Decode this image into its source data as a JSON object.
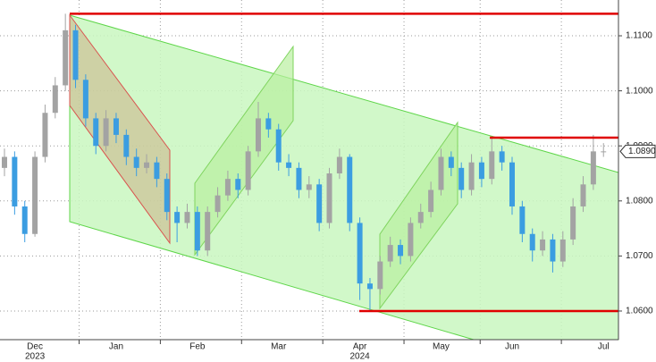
{
  "chart_data": {
    "type": "candlestick",
    "categories": [
      null,
      null,
      null,
      "Dec",
      null,
      null,
      null,
      null,
      null,
      null,
      null,
      "Jan",
      null,
      null,
      null,
      null,
      null,
      null,
      null,
      "Feb",
      null,
      null,
      null,
      null,
      null,
      null,
      null,
      "Mar",
      null,
      null,
      null,
      null,
      null,
      null,
      null,
      "Apr",
      null,
      null,
      null,
      null,
      null,
      null,
      null,
      "May",
      null,
      null,
      null,
      null,
      null,
      null,
      "Jun",
      null,
      null,
      null,
      null,
      null,
      null,
      null,
      null,
      "Jul"
    ],
    "years": [
      null,
      null,
      null,
      "2023",
      null,
      null,
      null,
      null,
      null,
      null,
      null,
      null,
      null,
      null,
      null,
      null,
      null,
      null,
      null,
      null,
      null,
      null,
      null,
      null,
      null,
      null,
      null,
      null,
      null,
      null,
      null,
      null,
      null,
      null,
      null,
      "2024",
      null,
      null,
      null,
      null,
      null,
      null,
      null,
      null,
      null,
      null,
      null,
      null,
      null,
      null,
      null,
      null,
      null,
      null,
      null,
      null,
      null,
      null,
      null,
      null
    ],
    "open": [
      1.086,
      1.088,
      1.079,
      1.074,
      1.088,
      1.096,
      1.101,
      1.111,
      1.102,
      1.095,
      1.09,
      1.095,
      1.092,
      1.088,
      1.086,
      1.087,
      1.084,
      1.078,
      1.076,
      1.078,
      1.071,
      1.078,
      1.081,
      1.084,
      1.082,
      1.089,
      1.095,
      1.093,
      1.087,
      1.086,
      1.082,
      1.083,
      1.076,
      1.085,
      1.088,
      1.076,
      1.065,
      1.064,
      1.069,
      1.072,
      1.07,
      1.076,
      1.078,
      1.082,
      1.088,
      1.086,
      1.082,
      1.087,
      1.084,
      1.089,
      1.087,
      1.079,
      1.074,
      1.071,
      1.073,
      1.069,
      1.073,
      1.079,
      1.083,
      1.089
    ],
    "high": [
      1.0895,
      1.089,
      1.08,
      1.089,
      1.0975,
      1.1025,
      1.114,
      1.112,
      1.103,
      1.096,
      1.0965,
      1.096,
      1.093,
      1.0895,
      1.0885,
      1.088,
      1.085,
      1.079,
      1.0795,
      1.079,
      1.079,
      1.0825,
      1.0855,
      1.085,
      1.09,
      1.098,
      1.096,
      1.094,
      1.0885,
      1.087,
      1.0845,
      1.084,
      1.086,
      1.0895,
      1.0885,
      1.077,
      1.066,
      1.07,
      1.0735,
      1.073,
      1.077,
      1.0795,
      1.0835,
      1.0895,
      1.089,
      1.087,
      1.0885,
      1.088,
      1.0915,
      1.09,
      1.088,
      1.08,
      1.075,
      1.0745,
      1.074,
      1.0745,
      1.0805,
      1.0845,
      1.092,
      1.0905
    ],
    "low": [
      1.0845,
      1.0775,
      1.0725,
      1.0735,
      1.087,
      1.095,
      1.1,
      1.1005,
      1.0935,
      1.0885,
      1.089,
      1.0905,
      1.0865,
      1.0845,
      1.085,
      1.0825,
      1.0765,
      1.0725,
      1.075,
      1.07,
      1.07,
      1.077,
      1.08,
      1.0805,
      1.081,
      1.088,
      1.0915,
      1.0855,
      1.0845,
      1.0805,
      1.0805,
      1.0745,
      1.075,
      1.084,
      1.0745,
      1.062,
      1.06,
      1.063,
      1.068,
      1.0685,
      1.069,
      1.075,
      1.077,
      1.081,
      1.0845,
      1.0805,
      1.081,
      1.0825,
      1.083,
      1.0855,
      1.0775,
      1.0725,
      1.069,
      1.07,
      1.067,
      1.068,
      1.072,
      1.078,
      1.082,
      1.088
    ],
    "close": [
      1.088,
      1.079,
      1.074,
      1.088,
      1.096,
      1.101,
      1.111,
      1.102,
      1.095,
      1.09,
      1.095,
      1.092,
      1.088,
      1.086,
      1.087,
      1.084,
      1.078,
      1.076,
      1.078,
      1.071,
      1.078,
      1.081,
      1.084,
      1.082,
      1.089,
      1.095,
      1.093,
      1.087,
      1.086,
      1.082,
      1.083,
      1.076,
      1.085,
      1.088,
      1.076,
      1.065,
      1.064,
      1.069,
      1.072,
      1.07,
      1.076,
      1.078,
      1.082,
      1.088,
      1.086,
      1.082,
      1.087,
      1.084,
      1.089,
      1.087,
      1.079,
      1.074,
      1.071,
      1.073,
      1.069,
      1.073,
      1.079,
      1.083,
      1.089,
      1.089
    ],
    "up_color": "#a3a3a3",
    "down_color": "#3b9de1",
    "ylim": [
      1.0548,
      1.1165
    ],
    "yticks": [
      {
        "value": 1.06,
        "label": "1.0600"
      },
      {
        "value": 1.07,
        "label": "1.0700"
      },
      {
        "value": 1.08,
        "label": "1.0800"
      },
      {
        "value": 1.09,
        "label": "1.0900"
      },
      {
        "value": 1.1,
        "label": "1.1000"
      },
      {
        "value": 1.11,
        "label": "1.1100"
      }
    ],
    "grid": true,
    "levels": [
      1.114,
      1.0915,
      1.06
    ],
    "level_color": "#e00000",
    "last_price": 1.089,
    "last_price_label": "1.0890"
  }
}
